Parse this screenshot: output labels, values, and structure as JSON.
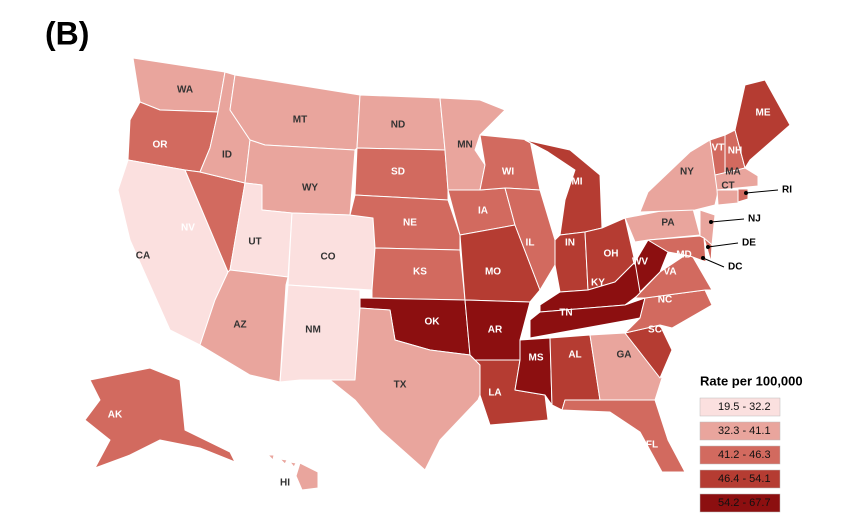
{
  "panel_label": "(B)",
  "legend": {
    "title": "Rate per 100,000",
    "items": [
      {
        "label": "19.5 - 32.2",
        "color": "#fbe0df"
      },
      {
        "label": "32.3 - 41.1",
        "color": "#e9a59d"
      },
      {
        "label": "41.2 - 46.3",
        "color": "#d26a5f"
      },
      {
        "label": "46.4 - 54.1",
        "color": "#b53c32"
      },
      {
        "label": "54.2 - 67.7",
        "color": "#8c0f10"
      }
    ]
  },
  "states": [
    {
      "label": "WA",
      "color": "#e9a59d"
    },
    {
      "label": "OR",
      "color": "#d26a5f"
    },
    {
      "label": "CA",
      "color": "#fbe0df"
    },
    {
      "label": "NV",
      "color": "#d26a5f"
    },
    {
      "label": "ID",
      "color": "#e9a59d"
    },
    {
      "label": "MT",
      "color": "#e9a59d"
    },
    {
      "label": "WY",
      "color": "#e9a59d"
    },
    {
      "label": "UT",
      "color": "#fbe0df"
    },
    {
      "label": "CO",
      "color": "#fbe0df"
    },
    {
      "label": "AZ",
      "color": "#e9a59d"
    },
    {
      "label": "NM",
      "color": "#fbe0df"
    },
    {
      "label": "ND",
      "color": "#e9a59d"
    },
    {
      "label": "SD",
      "color": "#d26a5f"
    },
    {
      "label": "NE",
      "color": "#d26a5f"
    },
    {
      "label": "KS",
      "color": "#d26a5f"
    },
    {
      "label": "OK",
      "color": "#8c0f10"
    },
    {
      "label": "TX",
      "color": "#e9a59d"
    },
    {
      "label": "MN",
      "color": "#e9a59d"
    },
    {
      "label": "IA",
      "color": "#d26a5f"
    },
    {
      "label": "MO",
      "color": "#b53c32"
    },
    {
      "label": "AR",
      "color": "#8c0f10"
    },
    {
      "label": "LA",
      "color": "#b53c32"
    },
    {
      "label": "WI",
      "color": "#d26a5f"
    },
    {
      "label": "IL",
      "color": "#d26a5f"
    },
    {
      "label": "MI",
      "color": "#b53c32"
    },
    {
      "label": "IN",
      "color": "#b53c32"
    },
    {
      "label": "OH",
      "color": "#b53c32"
    },
    {
      "label": "KY",
      "color": "#8c0f10"
    },
    {
      "label": "TN",
      "color": "#8c0f10"
    },
    {
      "label": "MS",
      "color": "#8c0f10"
    },
    {
      "label": "AL",
      "color": "#b53c32"
    },
    {
      "label": "GA",
      "color": "#e9a59d"
    },
    {
      "label": "FL",
      "color": "#d26a5f"
    },
    {
      "label": "SC",
      "color": "#b53c32"
    },
    {
      "label": "NC",
      "color": "#d26a5f"
    },
    {
      "label": "VA",
      "color": "#d26a5f"
    },
    {
      "label": "WV",
      "color": "#8c0f10"
    },
    {
      "label": "PA",
      "color": "#e9a59d"
    },
    {
      "label": "NY",
      "color": "#e9a59d"
    },
    {
      "label": "NJ",
      "color": "#e9a59d"
    },
    {
      "label": "DE",
      "color": "#d26a5f"
    },
    {
      "label": "MD",
      "color": "#d26a5f"
    },
    {
      "label": "VT",
      "color": "#d26a5f"
    },
    {
      "label": "NH",
      "color": "#d26a5f"
    },
    {
      "label": "MA",
      "color": "#e9a59d"
    },
    {
      "label": "CT",
      "color": "#e9a59d"
    },
    {
      "label": "RI",
      "color": "#d26a5f"
    },
    {
      "label": "ME",
      "color": "#b53c32"
    },
    {
      "label": "AK",
      "color": "#d26a5f"
    },
    {
      "label": "HI",
      "color": "#e9a59d"
    },
    {
      "label": "DC"
    }
  ]
}
